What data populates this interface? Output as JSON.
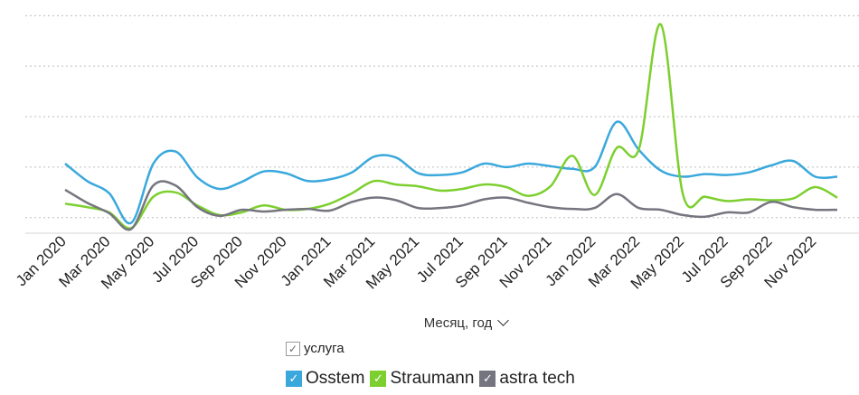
{
  "chart_data": {
    "type": "line",
    "xlabel": "Месяц, год",
    "legend_group_label": "услуга",
    "x_tick_labels": [
      "Jan 2020",
      "Mar 2020",
      "May 2020",
      "Jul 2020",
      "Sep 2020",
      "Nov 2020",
      "Jan 2021",
      "Mar 2021",
      "May 2021",
      "Jul 2021",
      "Sep 2021",
      "Nov 2021",
      "Jan 2022",
      "Mar 2022",
      "May 2022",
      "Jul 2022",
      "Sep 2022",
      "Nov 2022"
    ],
    "x": [
      "Jan 2020",
      "Feb 2020",
      "Mar 2020",
      "Apr 2020",
      "May 2020",
      "Jun 2020",
      "Jul 2020",
      "Aug 2020",
      "Sep 2020",
      "Oct 2020",
      "Nov 2020",
      "Dec 2020",
      "Jan 2021",
      "Feb 2021",
      "Mar 2021",
      "Apr 2021",
      "May 2021",
      "Jun 2021",
      "Jul 2021",
      "Aug 2021",
      "Sep 2021",
      "Oct 2021",
      "Nov 2021",
      "Dec 2021",
      "Jan 2022",
      "Feb 2022",
      "Mar 2022",
      "Apr 2022",
      "May 2022",
      "Jun 2022",
      "Jul 2022",
      "Aug 2022",
      "Sep 2022",
      "Oct 2022",
      "Nov 2022",
      "Dec 2022"
    ],
    "ylim": [
      -20,
      250
    ],
    "y_gridlines": [
      0,
      58,
      116,
      174,
      232
    ],
    "grid": true,
    "series": [
      {
        "name": "Osstem",
        "color": "#3aa8dc",
        "values": [
          62,
          42,
          28,
          -6,
          62,
          76,
          46,
          33,
          41,
          53,
          51,
          42,
          44,
          52,
          70,
          69,
          51,
          49,
          52,
          62,
          58,
          62,
          59,
          56,
          58,
          110,
          78,
          54,
          47,
          50,
          49,
          52,
          60,
          65,
          47,
          47
        ]
      },
      {
        "name": "Straumann",
        "color": "#7dcf2f",
        "values": [
          16,
          12,
          6,
          -12,
          24,
          29,
          14,
          3,
          6,
          14,
          9,
          10,
          16,
          28,
          42,
          38,
          36,
          31,
          33,
          38,
          35,
          25,
          36,
          71,
          26,
          80,
          78,
          222,
          27,
          24,
          19,
          21,
          20,
          22,
          35,
          23
        ]
      },
      {
        "name": "astra tech",
        "color": "#75757f",
        "values": [
          32,
          17,
          5,
          -13,
          37,
          37,
          12,
          2,
          9,
          7,
          9,
          10,
          8,
          18,
          23,
          20,
          11,
          11,
          14,
          21,
          23,
          17,
          12,
          10,
          11,
          27,
          11,
          9,
          3,
          1,
          6,
          6,
          18,
          12,
          9,
          9
        ]
      }
    ]
  },
  "legend": {
    "group_checkbox": "✓",
    "series_checkbox": "✓"
  }
}
